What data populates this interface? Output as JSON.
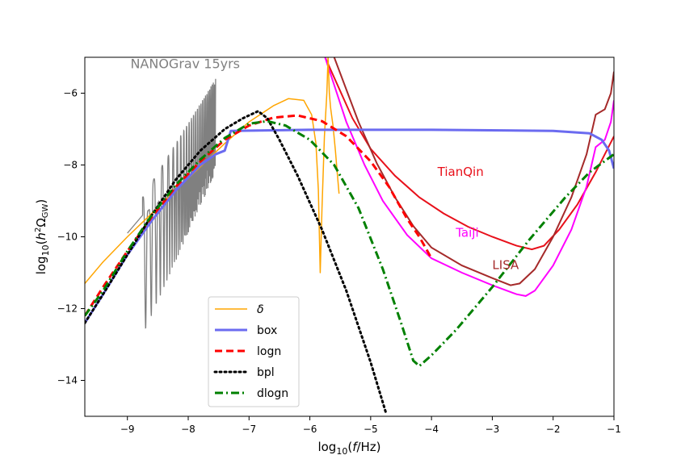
{
  "chart_data": {
    "type": "line",
    "xlabel": "log10(f/Hz)",
    "ylabel": "log10(h²ΩGW)",
    "xlim": [
      -9.7,
      -1.0
    ],
    "ylim": [
      -15.0,
      -5.0
    ],
    "xticks": [
      -9,
      -8,
      -7,
      -6,
      -5,
      -4,
      -3,
      -2,
      -1
    ],
    "yticks": [
      -14,
      -12,
      -10,
      -8,
      -6
    ],
    "xtick_labels": [
      "−9",
      "−8",
      "−7",
      "−6",
      "−5",
      "−4",
      "−3",
      "−2",
      "−1"
    ],
    "ytick_labels": [
      "−14",
      "−12",
      "−10",
      "−8",
      "−6"
    ],
    "grid": false,
    "legend_position": "lower-left",
    "colors": {
      "delta": "#ffa500",
      "box": "#6b6bf0",
      "logn": "#ff0000",
      "bpl": "#000000",
      "dlogn": "#008000",
      "nanograv": "#808080",
      "tianqin": "#e8101a",
      "taiji": "#ff00ff",
      "lisa": "#a52a2a"
    },
    "series": [
      {
        "name": "δ",
        "style": "solid",
        "points": [
          [
            -9.7,
            -11.3
          ],
          [
            -9.4,
            -10.7
          ],
          [
            -9.0,
            -10.0
          ],
          [
            -8.6,
            -9.35
          ],
          [
            -8.2,
            -8.7
          ],
          [
            -7.8,
            -8.05
          ],
          [
            -7.4,
            -7.4
          ],
          [
            -7.0,
            -6.8
          ],
          [
            -6.6,
            -6.35
          ],
          [
            -6.35,
            -6.15
          ],
          [
            -6.1,
            -6.2
          ],
          [
            -5.97,
            -6.6
          ],
          [
            -5.9,
            -7.4
          ],
          [
            -5.86,
            -8.7
          ],
          [
            -5.83,
            -11.0
          ],
          [
            -5.8,
            -9.2
          ],
          [
            -5.76,
            -7.2
          ],
          [
            -5.72,
            -6.0
          ],
          [
            -5.7,
            -5.0
          ],
          [
            -5.68,
            -6.0
          ],
          [
            -5.66,
            -6.4
          ],
          [
            -5.62,
            -6.9
          ],
          [
            -5.58,
            -7.6
          ],
          [
            -5.55,
            -8.2
          ],
          [
            -5.52,
            -8.8
          ]
        ]
      },
      {
        "name": "box",
        "style": "solid",
        "points": [
          [
            -9.7,
            -12.4
          ],
          [
            -9.4,
            -11.6
          ],
          [
            -9.0,
            -10.5
          ],
          [
            -8.6,
            -9.55
          ],
          [
            -8.2,
            -8.7
          ],
          [
            -7.8,
            -8.0
          ],
          [
            -7.55,
            -7.7
          ],
          [
            -7.4,
            -7.6
          ],
          [
            -7.3,
            -7.05
          ],
          [
            -6.0,
            -7.02
          ],
          [
            -4.0,
            -7.02
          ],
          [
            -2.0,
            -7.05
          ],
          [
            -1.4,
            -7.12
          ],
          [
            -1.2,
            -7.3
          ],
          [
            -1.08,
            -7.6
          ],
          [
            -1.0,
            -8.1
          ]
        ]
      },
      {
        "name": "logn",
        "style": "dashed",
        "points": [
          [
            -9.7,
            -12.2
          ],
          [
            -9.4,
            -11.4
          ],
          [
            -9.0,
            -10.4
          ],
          [
            -8.6,
            -9.45
          ],
          [
            -8.2,
            -8.6
          ],
          [
            -7.8,
            -7.9
          ],
          [
            -7.4,
            -7.3
          ],
          [
            -7.0,
            -6.9
          ],
          [
            -6.6,
            -6.68
          ],
          [
            -6.2,
            -6.62
          ],
          [
            -5.8,
            -6.78
          ],
          [
            -5.4,
            -7.2
          ],
          [
            -5.0,
            -7.9
          ],
          [
            -4.7,
            -8.6
          ],
          [
            -4.4,
            -9.5
          ],
          [
            -4.2,
            -10.0
          ],
          [
            -4.0,
            -10.6
          ]
        ]
      },
      {
        "name": "bpl",
        "style": "dotted",
        "points": [
          [
            -9.7,
            -12.4
          ],
          [
            -9.4,
            -11.6
          ],
          [
            -9.0,
            -10.5
          ],
          [
            -8.6,
            -9.4
          ],
          [
            -8.2,
            -8.4
          ],
          [
            -7.8,
            -7.6
          ],
          [
            -7.4,
            -7.0
          ],
          [
            -7.1,
            -6.7
          ],
          [
            -6.85,
            -6.5
          ],
          [
            -6.7,
            -6.7
          ],
          [
            -6.5,
            -7.3
          ],
          [
            -6.2,
            -8.3
          ],
          [
            -5.8,
            -9.8
          ],
          [
            -5.4,
            -11.5
          ],
          [
            -5.0,
            -13.5
          ],
          [
            -4.75,
            -14.9
          ]
        ]
      },
      {
        "name": "dlogn",
        "style": "dashdot",
        "points": [
          [
            -9.7,
            -12.2
          ],
          [
            -9.4,
            -11.5
          ],
          [
            -9.0,
            -10.4
          ],
          [
            -8.6,
            -9.4
          ],
          [
            -8.2,
            -8.55
          ],
          [
            -7.8,
            -7.85
          ],
          [
            -7.4,
            -7.25
          ],
          [
            -7.0,
            -6.85
          ],
          [
            -6.7,
            -6.78
          ],
          [
            -6.4,
            -6.9
          ],
          [
            -6.0,
            -7.3
          ],
          [
            -5.6,
            -8.0
          ],
          [
            -5.2,
            -9.2
          ],
          [
            -4.8,
            -10.9
          ],
          [
            -4.5,
            -12.4
          ],
          [
            -4.3,
            -13.45
          ],
          [
            -4.2,
            -13.6
          ],
          [
            -4.0,
            -13.3
          ],
          [
            -3.6,
            -12.6
          ],
          [
            -3.0,
            -11.4
          ],
          [
            -2.4,
            -10.1
          ],
          [
            -1.8,
            -8.9
          ],
          [
            -1.4,
            -8.2
          ],
          [
            -1.0,
            -7.7
          ]
        ]
      }
    ],
    "sensitivity_curves": [
      {
        "name": "TianQin",
        "label": "TianQin",
        "label_pos": [
          -3.9,
          -8.3
        ],
        "points": [
          [
            -5.75,
            -5.0
          ],
          [
            -5.3,
            -6.7
          ],
          [
            -5.0,
            -7.55
          ],
          [
            -4.6,
            -8.3
          ],
          [
            -4.2,
            -8.9
          ],
          [
            -3.8,
            -9.35
          ],
          [
            -3.4,
            -9.72
          ],
          [
            -3.0,
            -10.0
          ],
          [
            -2.6,
            -10.25
          ],
          [
            -2.35,
            -10.35
          ],
          [
            -2.15,
            -10.25
          ],
          [
            -1.9,
            -9.8
          ],
          [
            -1.6,
            -9.1
          ],
          [
            -1.3,
            -8.2
          ],
          [
            -1.0,
            -7.2
          ]
        ]
      },
      {
        "name": "Taiji",
        "label": "Taiji",
        "label_pos": [
          -3.6,
          -10.0
        ],
        "points": [
          [
            -5.75,
            -5.0
          ],
          [
            -5.4,
            -6.8
          ],
          [
            -5.1,
            -8.0
          ],
          [
            -4.8,
            -9.0
          ],
          [
            -4.4,
            -9.95
          ],
          [
            -4.0,
            -10.6
          ],
          [
            -3.5,
            -11.0
          ],
          [
            -3.0,
            -11.35
          ],
          [
            -2.6,
            -11.6
          ],
          [
            -2.45,
            -11.65
          ],
          [
            -2.3,
            -11.5
          ],
          [
            -2.0,
            -10.8
          ],
          [
            -1.7,
            -9.8
          ],
          [
            -1.45,
            -8.6
          ],
          [
            -1.3,
            -7.5
          ],
          [
            -1.15,
            -7.3
          ],
          [
            -1.05,
            -6.8
          ],
          [
            -1.0,
            -6.2
          ]
        ]
      },
      {
        "name": "LISA",
        "label": "LISA",
        "label_pos": [
          -3.0,
          -10.9
        ],
        "points": [
          [
            -5.6,
            -5.0
          ],
          [
            -5.2,
            -6.8
          ],
          [
            -4.9,
            -7.95
          ],
          [
            -4.6,
            -8.9
          ],
          [
            -4.3,
            -9.7
          ],
          [
            -4.0,
            -10.3
          ],
          [
            -3.5,
            -10.8
          ],
          [
            -3.0,
            -11.15
          ],
          [
            -2.7,
            -11.35
          ],
          [
            -2.55,
            -11.3
          ],
          [
            -2.3,
            -10.9
          ],
          [
            -2.0,
            -10.0
          ],
          [
            -1.7,
            -8.9
          ],
          [
            -1.45,
            -7.7
          ],
          [
            -1.3,
            -6.6
          ],
          [
            -1.15,
            -6.45
          ],
          [
            -1.05,
            -6.0
          ],
          [
            -1.0,
            -5.4
          ]
        ]
      }
    ],
    "nanograv": {
      "label": "NANOGrav 15yrs",
      "label_pos": [
        -8.95,
        -5.3
      ],
      "x_range": [
        -8.75,
        -7.55
      ],
      "baseline_start": -9.4,
      "baseline_end": -7.8,
      "top_start": -8.9,
      "top_end": -5.6
    },
    "legend": [
      "δ",
      "box",
      "logn",
      "bpl",
      "dlogn"
    ]
  }
}
